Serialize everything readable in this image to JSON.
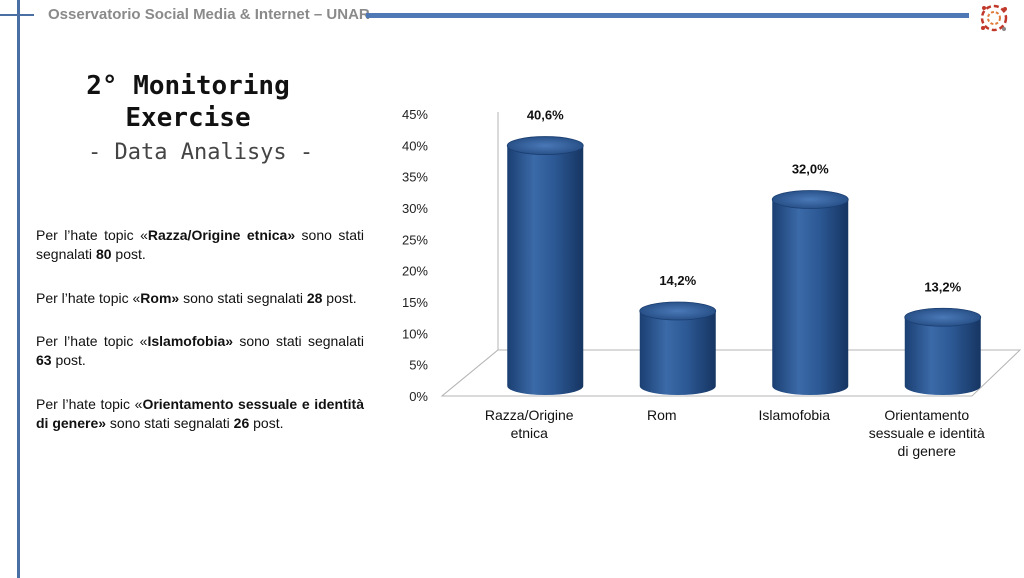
{
  "header": {
    "title": "Osservatorio Social Media & Internet – UNAR"
  },
  "slide": {
    "title_line1": "2° Monitoring",
    "title_line2": "Exercise",
    "subtitle": "- Data Analisys -"
  },
  "paragraphs": [
    {
      "pre": "Per l’hate topic «",
      "topic": "Razza/Origine etnica»",
      "mid": " sono stati segnalati ",
      "count": "80",
      "post": " post."
    },
    {
      "pre": "Per l’hate topic «",
      "topic": "Rom»",
      "mid": " sono stati segnalati ",
      "count": "28",
      "post": " post."
    },
    {
      "pre": "Per l’hate topic «",
      "topic": "Islamofobia»",
      "mid": " sono stati segnalati ",
      "count": "63",
      "post": " post."
    },
    {
      "pre": "Per l’hate topic «",
      "topic": "Orientamento sessuale e identità di genere»",
      "mid": " sono stati segnalati ",
      "count": "26",
      "post": " post."
    }
  ],
  "chart_data": {
    "type": "bar",
    "categories": [
      [
        "Razza/Origine",
        "etnica"
      ],
      [
        "Rom"
      ],
      [
        "Islamofobia"
      ],
      [
        "Orientamento",
        "sessuale e identità",
        "di genere"
      ]
    ],
    "values": [
      40.6,
      14.2,
      32.0,
      13.2
    ],
    "data_labels": [
      "40,6%",
      "14,2%",
      "32,0%",
      "13,2%"
    ],
    "y_ticks": [
      "0%",
      "5%",
      "10%",
      "15%",
      "20%",
      "25%",
      "30%",
      "35%",
      "40%",
      "45%"
    ],
    "ylim": [
      0,
      45
    ],
    "bar_color": "#2d5a96",
    "grid": false,
    "legend": "none"
  }
}
